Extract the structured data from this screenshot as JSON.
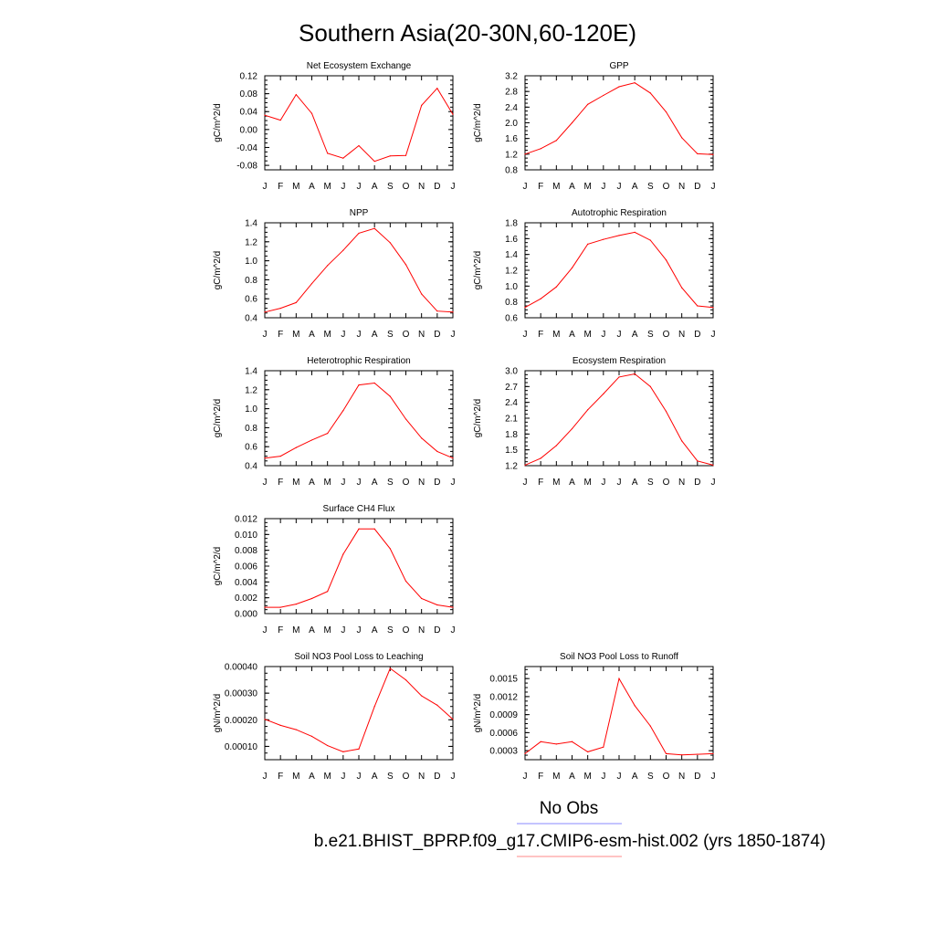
{
  "title": "Southern Asia(20-30N,60-120E)",
  "month_labels": [
    "J",
    "F",
    "M",
    "A",
    "M",
    "J",
    "J",
    "A",
    "S",
    "O",
    "N",
    "D",
    "J"
  ],
  "colors": {
    "model_line": "#ff0000",
    "obs_line": "#8888ff",
    "frame": "#000000"
  },
  "legend": {
    "obs_label": "No Obs",
    "model_label": "b.e21.BHIST_BPRP.f09_g17.CMIP6-esm-hist.002 (yrs 1850-1874)"
  },
  "chart_data": [
    {
      "type": "line",
      "title": "Net Ecosystem Exchange",
      "ylabel": "gC/m^2/d",
      "ylim": [
        -0.09,
        0.12
      ],
      "yticks": [
        -0.08,
        -0.04,
        0.0,
        0.04,
        0.08,
        0.12
      ],
      "ytick_labels": [
        "-0.08",
        "-0.04",
        "0.00",
        "0.04",
        "0.08",
        "0.12"
      ],
      "x": [
        "J",
        "F",
        "M",
        "A",
        "M",
        "J",
        "J",
        "A",
        "S",
        "O",
        "N",
        "D",
        "J"
      ],
      "values": [
        0.032,
        0.021,
        0.078,
        0.036,
        -0.053,
        -0.064,
        -0.036,
        -0.071,
        -0.059,
        -0.058,
        0.054,
        0.092,
        0.034
      ]
    },
    {
      "type": "line",
      "title": "GPP",
      "ylabel": "gC/m^2/d",
      "ylim": [
        0.8,
        3.2
      ],
      "yticks": [
        0.8,
        1.2,
        1.6,
        2.0,
        2.4,
        2.8,
        3.2
      ],
      "ytick_labels": [
        "0.8",
        "1.2",
        "1.6",
        "2.0",
        "2.4",
        "2.8",
        "3.2"
      ],
      "x": [
        "J",
        "F",
        "M",
        "A",
        "M",
        "J",
        "J",
        "A",
        "S",
        "O",
        "N",
        "D",
        "J"
      ],
      "values": [
        1.2,
        1.34,
        1.55,
        2.0,
        2.47,
        2.7,
        2.92,
        3.02,
        2.76,
        2.28,
        1.62,
        1.21,
        1.19
      ]
    },
    {
      "type": "line",
      "title": "NPP",
      "ylabel": "gC/m^2/d",
      "ylim": [
        0.4,
        1.4
      ],
      "yticks": [
        0.4,
        0.6,
        0.8,
        1.0,
        1.2,
        1.4
      ],
      "ytick_labels": [
        "0.4",
        "0.6",
        "0.8",
        "1.0",
        "1.2",
        "1.4"
      ],
      "x": [
        "J",
        "F",
        "M",
        "A",
        "M",
        "J",
        "J",
        "A",
        "S",
        "O",
        "N",
        "D",
        "J"
      ],
      "values": [
        0.46,
        0.5,
        0.56,
        0.76,
        0.95,
        1.11,
        1.29,
        1.34,
        1.19,
        0.96,
        0.65,
        0.47,
        0.46
      ]
    },
    {
      "type": "line",
      "title": "Autotrophic Respiration",
      "ylabel": "gC/m^2/d",
      "ylim": [
        0.6,
        1.8
      ],
      "yticks": [
        0.6,
        0.8,
        1.0,
        1.2,
        1.4,
        1.6,
        1.8
      ],
      "ytick_labels": [
        "0.6",
        "0.8",
        "1.0",
        "1.2",
        "1.4",
        "1.6",
        "1.8"
      ],
      "x": [
        "J",
        "F",
        "M",
        "A",
        "M",
        "J",
        "J",
        "A",
        "S",
        "O",
        "N",
        "D",
        "J"
      ],
      "values": [
        0.73,
        0.84,
        0.99,
        1.23,
        1.53,
        1.59,
        1.64,
        1.68,
        1.58,
        1.33,
        0.98,
        0.75,
        0.73
      ]
    },
    {
      "type": "line",
      "title": "Heterotrophic Respiration",
      "ylabel": "gC/m^2/d",
      "ylim": [
        0.4,
        1.4
      ],
      "yticks": [
        0.4,
        0.6,
        0.8,
        1.0,
        1.2,
        1.4
      ],
      "ytick_labels": [
        "0.4",
        "0.6",
        "0.8",
        "1.0",
        "1.2",
        "1.4"
      ],
      "x": [
        "J",
        "F",
        "M",
        "A",
        "M",
        "J",
        "J",
        "A",
        "S",
        "O",
        "N",
        "D",
        "J"
      ],
      "values": [
        0.48,
        0.5,
        0.59,
        0.67,
        0.74,
        0.98,
        1.25,
        1.27,
        1.13,
        0.89,
        0.69,
        0.55,
        0.48
      ]
    },
    {
      "type": "line",
      "title": "Ecosystem Respiration",
      "ylabel": "gC/m^2/d",
      "ylim": [
        1.2,
        3.0
      ],
      "yticks": [
        1.2,
        1.5,
        1.8,
        2.1,
        2.4,
        2.7,
        3.0
      ],
      "ytick_labels": [
        "1.2",
        "1.5",
        "1.8",
        "2.1",
        "2.4",
        "2.7",
        "3.0"
      ],
      "x": [
        "J",
        "F",
        "M",
        "A",
        "M",
        "J",
        "J",
        "A",
        "S",
        "O",
        "N",
        "D",
        "J"
      ],
      "values": [
        1.21,
        1.34,
        1.58,
        1.9,
        2.26,
        2.56,
        2.88,
        2.94,
        2.7,
        2.23,
        1.67,
        1.29,
        1.21
      ]
    },
    {
      "type": "line",
      "title": "Surface CH4 Flux",
      "ylabel": "gC/m^2/d",
      "ylim": [
        0.0,
        0.012
      ],
      "yticks": [
        0.0,
        0.002,
        0.004,
        0.006,
        0.008,
        0.01,
        0.012
      ],
      "ytick_labels": [
        "0.000",
        "0.002",
        "0.004",
        "0.006",
        "0.008",
        "0.010",
        "0.012"
      ],
      "x": [
        "J",
        "F",
        "M",
        "A",
        "M",
        "J",
        "J",
        "A",
        "S",
        "O",
        "N",
        "D",
        "J"
      ],
      "values": [
        0.0008,
        0.0008,
        0.0012,
        0.0019,
        0.0028,
        0.0075,
        0.0107,
        0.0107,
        0.0082,
        0.0041,
        0.0019,
        0.0011,
        0.0008
      ]
    },
    {
      "type": "line",
      "title": "Soil NO3 Pool Loss to Leaching",
      "ylabel": "gN/m^2/d",
      "ylim": [
        5e-05,
        0.0004
      ],
      "yticks": [
        0.0001,
        0.0002,
        0.0003,
        0.0004
      ],
      "ytick_labels": [
        "0.00010",
        "0.00020",
        "0.00030",
        "0.00040"
      ],
      "x": [
        "J",
        "F",
        "M",
        "A",
        "M",
        "J",
        "J",
        "A",
        "S",
        "O",
        "N",
        "D",
        "J"
      ],
      "values": [
        0.000202,
        0.000179,
        0.000163,
        0.000138,
        0.000103,
        8e-05,
        9e-05,
        0.00025,
        0.000393,
        0.00035,
        0.00029,
        0.000255,
        0.000202
      ]
    },
    {
      "type": "line",
      "title": "Soil NO3 Pool Loss to Runoff",
      "ylabel": "gN/m^2/d",
      "ylim": [
        0.00015,
        0.0017
      ],
      "yticks": [
        0.0003,
        0.0006,
        0.0009,
        0.0012,
        0.0015
      ],
      "ytick_labels": [
        "0.0003",
        "0.0006",
        "0.0009",
        "0.0012",
        "0.0015"
      ],
      "x": [
        "J",
        "F",
        "M",
        "A",
        "M",
        "J",
        "J",
        "A",
        "S",
        "O",
        "N",
        "D",
        "J"
      ],
      "values": [
        0.00025,
        0.00045,
        0.00041,
        0.00045,
        0.00028,
        0.00036,
        0.0015,
        0.00105,
        0.00071,
        0.00025,
        0.00023,
        0.00024,
        0.00025
      ]
    }
  ]
}
